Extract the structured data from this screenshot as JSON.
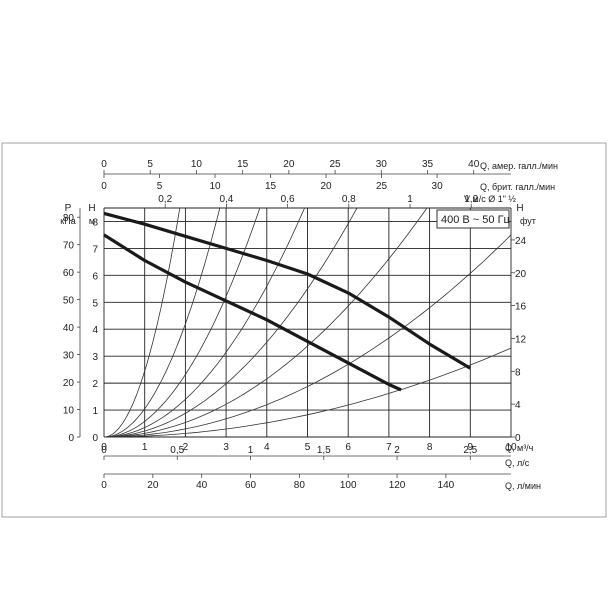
{
  "chart_data": {
    "type": "line",
    "legend": "400 В ~ 50 Гц",
    "grid": true,
    "axes": {
      "x_main": {
        "label": "Q, м³/ч",
        "ticks": [
          "0",
          "1",
          "2",
          "3",
          "4",
          "5",
          "6",
          "7",
          "8",
          "9",
          "10"
        ],
        "range": [
          0,
          10
        ]
      },
      "x_ls": {
        "label": "Q, л/с",
        "ticks": [
          "0",
          "0,5",
          "1",
          "1,5",
          "2",
          "2,5"
        ],
        "values": [
          0,
          0.5,
          1,
          1.5,
          2,
          2.5
        ]
      },
      "x_lmin": {
        "label": "Q, л/мин",
        "ticks": [
          "0",
          "20",
          "40",
          "60",
          "80",
          "100",
          "120",
          "140"
        ],
        "values": [
          0,
          20,
          40,
          60,
          80,
          100,
          120,
          140
        ]
      },
      "x_top_us": {
        "label": "Q, амер. галл./мин",
        "ticks": [
          "0",
          "5",
          "10",
          "15",
          "20",
          "25",
          "30",
          "35",
          "40"
        ],
        "values": [
          0,
          5,
          10,
          15,
          20,
          25,
          30,
          35,
          40
        ]
      },
      "x_top_uk": {
        "label": "Q, брит. галл./мин",
        "ticks": [
          "0",
          "5",
          "10",
          "15",
          "20",
          "25",
          "30"
        ],
        "values": [
          0,
          5,
          10,
          15,
          20,
          25,
          30
        ]
      },
      "x_top_v": {
        "label": "V м/с Ø 1\" ½",
        "ticks": [
          "0,2",
          "0,4",
          "0,6",
          "0,8",
          "1",
          "1,2"
        ],
        "values": [
          0.2,
          0.4,
          0.6,
          0.8,
          1.0,
          1.2
        ]
      },
      "y_h_m": {
        "label": "H",
        "unit": "м",
        "ticks": [
          "0",
          "1",
          "2",
          "3",
          "4",
          "5",
          "6",
          "7",
          "8"
        ],
        "range": [
          0,
          8.5
        ]
      },
      "y_p_kpa": {
        "label": "P",
        "unit": "кПа",
        "ticks": [
          "0",
          "10",
          "20",
          "30",
          "40",
          "50",
          "60",
          "70",
          "80"
        ],
        "values": [
          0,
          10,
          20,
          30,
          40,
          50,
          60,
          70,
          80
        ]
      },
      "y_h_ft": {
        "label": "H",
        "unit": "фут",
        "ticks": [
          "0",
          "4",
          "8",
          "12",
          "16",
          "20",
          "24"
        ],
        "values": [
          0,
          4,
          8,
          12,
          16,
          20,
          24
        ]
      }
    },
    "series": [
      {
        "x": [
          0,
          1,
          2,
          3,
          4,
          5,
          6,
          7,
          8,
          9
        ],
        "y": [
          8.3,
          7.9,
          7.45,
          7.0,
          6.55,
          6.05,
          5.35,
          4.45,
          3.45,
          2.55
        ]
      },
      {
        "x": [
          0,
          1,
          2,
          3,
          4,
          5,
          6,
          7,
          7.3
        ],
        "y": [
          7.5,
          6.55,
          5.75,
          5.05,
          4.35,
          3.55,
          2.75,
          1.95,
          1.75
        ]
      }
    ],
    "system_curves": [
      {
        "k": 2.45
      },
      {
        "k": 1.05
      },
      {
        "k": 0.58
      },
      {
        "k": 0.35
      },
      {
        "k": 0.22
      },
      {
        "k": 0.135
      },
      {
        "k": 0.075
      },
      {
        "k": 0.033
      }
    ]
  }
}
